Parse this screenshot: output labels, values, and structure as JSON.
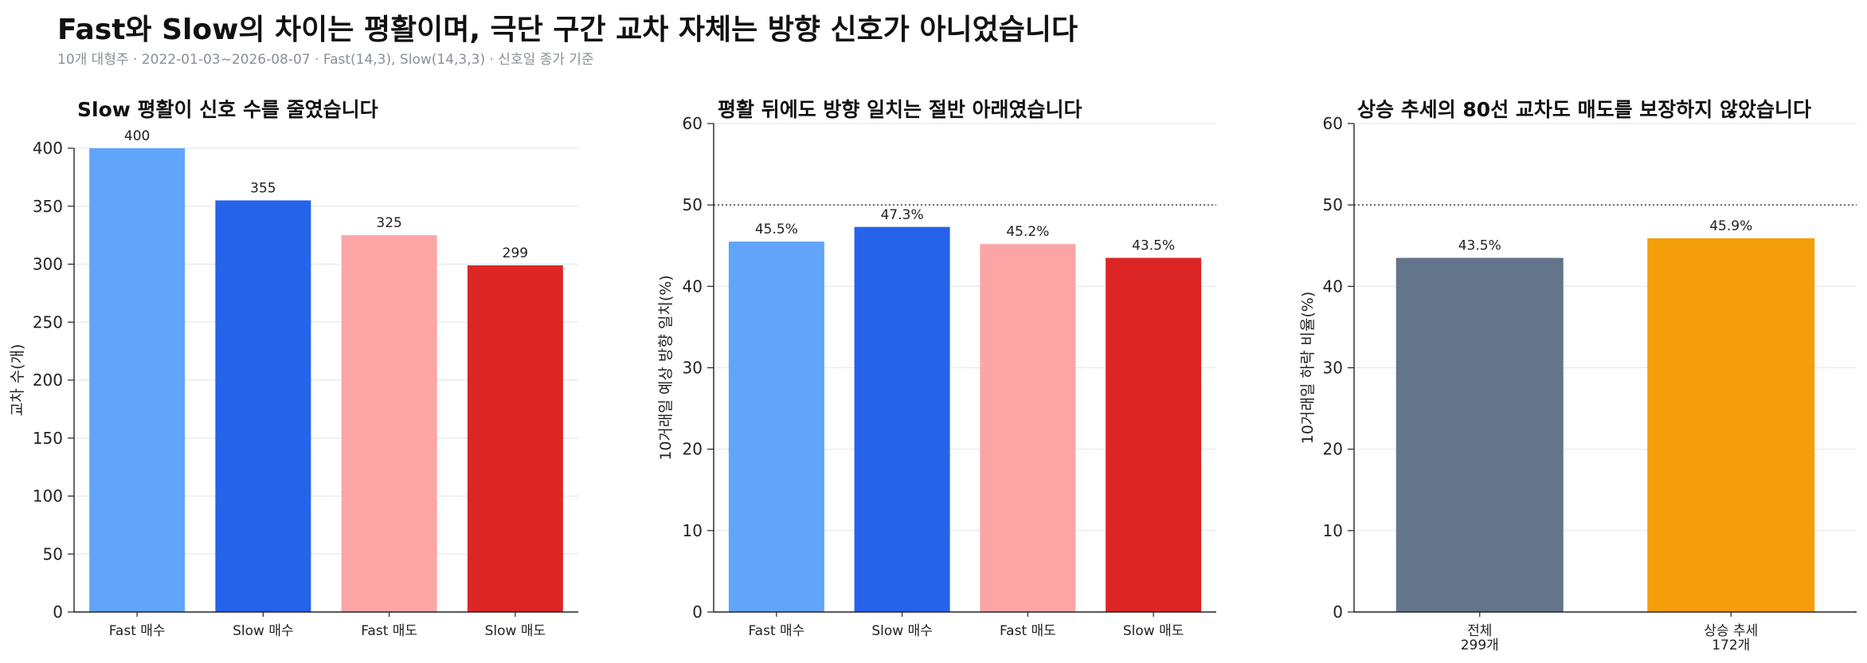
{
  "header": {
    "title": "Fast와 Slow의 차이는 평활이며, 극단 구간 교차 자체는 방향 신호가 아니었습니다",
    "subtitle": "10개 대형주 · 2022-01-03~2026-08-07 · Fast(14,3), Slow(14,3,3) · 신호일 종가 기준"
  },
  "chart_data": [
    {
      "type": "bar",
      "title": "Slow 평활이 신호 수를 줄였습니다",
      "ylabel": "교차 수(개)",
      "xlabel": "",
      "categories": [
        "Fast 매수",
        "Slow 매수",
        "Fast 매도",
        "Slow 매도"
      ],
      "values": [
        400,
        355,
        325,
        299
      ],
      "value_labels": [
        "400",
        "355",
        "325",
        "299"
      ],
      "colors": [
        "#60a5fa",
        "#2563eb",
        "#fca5a5",
        "#dc2626"
      ],
      "ylim": [
        0,
        400
      ],
      "yticks": [
        0,
        50,
        100,
        150,
        200,
        250,
        300,
        350,
        400
      ],
      "grid": true,
      "reference_line": null
    },
    {
      "type": "bar",
      "title": "평활 뒤에도 방향 일치는 절반 아래였습니다",
      "ylabel": "10거래일 예상 방향 일치(%)",
      "xlabel": "",
      "categories": [
        "Fast 매수",
        "Slow 매수",
        "Fast 매도",
        "Slow 매도"
      ],
      "values": [
        45.5,
        47.3,
        45.2,
        43.5
      ],
      "value_labels": [
        "45.5%",
        "47.3%",
        "45.2%",
        "43.5%"
      ],
      "colors": [
        "#60a5fa",
        "#2563eb",
        "#fca5a5",
        "#dc2626"
      ],
      "ylim": [
        0,
        60
      ],
      "yticks": [
        0,
        10,
        20,
        30,
        40,
        50,
        60
      ],
      "grid": true,
      "reference_line": 50
    },
    {
      "type": "bar",
      "title": "상승 추세의 80선 교차도 매도를 보장하지 않았습니다",
      "ylabel": "10거래일 하락 비율(%)",
      "xlabel": "",
      "categories": [
        "전체\n299개",
        "상승 추세\n172개"
      ],
      "values": [
        43.5,
        45.9
      ],
      "value_labels": [
        "43.5%",
        "45.9%"
      ],
      "colors": [
        "#64748b",
        "#f59e0b"
      ],
      "ylim": [
        0,
        60
      ],
      "yticks": [
        0,
        10,
        20,
        30,
        40,
        50,
        60
      ],
      "grid": true,
      "reference_line": 50
    }
  ]
}
